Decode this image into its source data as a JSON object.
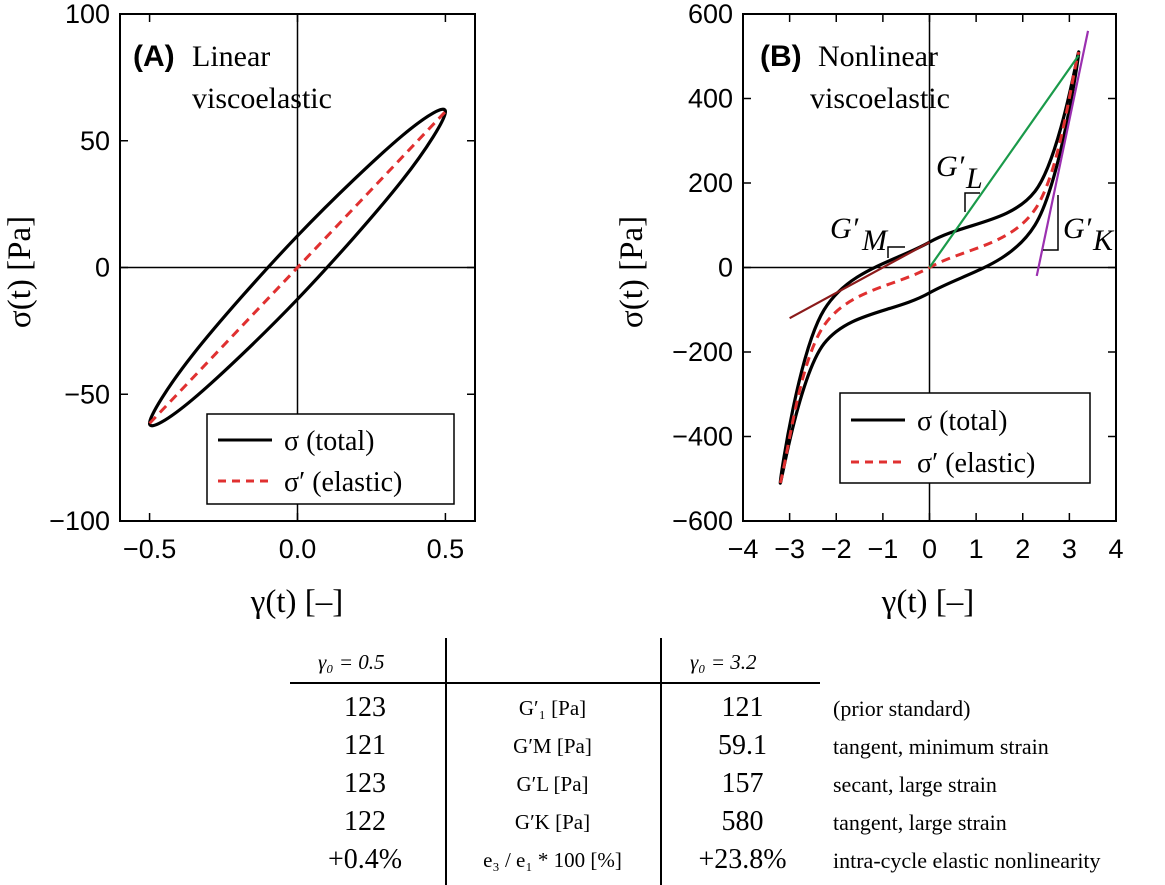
{
  "chart_data": [
    {
      "type": "line",
      "panel_letter": "(A)",
      "panel_desc_line1": "Linear",
      "panel_desc_line2": "viscoelastic",
      "xlabel": "γ(t) [–]",
      "ylabel": "σ(t) [Pa]",
      "xlim": [
        -0.6,
        0.6
      ],
      "ylim": [
        -100,
        100
      ],
      "xticks": [
        "−0.5",
        "0.0",
        "0.5"
      ],
      "xtick_values": [
        -0.5,
        0.0,
        0.5
      ],
      "yticks": [
        "100",
        "50",
        "0",
        "−50",
        "−100"
      ],
      "ytick_values": [
        100,
        50,
        0,
        -50,
        -100
      ],
      "gamma0": 0.5,
      "series": [
        {
          "name": "σ (total)",
          "style": "solid",
          "color": "#000000",
          "x": [
            0.5,
            0.354,
            0.0,
            -0.354,
            -0.5,
            -0.354,
            0.0,
            0.354,
            0.5
          ],
          "y": [
            61.5,
            52.0,
            12.5,
            -34.4,
            -61.5,
            -52.0,
            -12.5,
            34.4,
            61.5
          ]
        },
        {
          "name": "σ′ (elastic)",
          "style": "dashed",
          "color": "#e03030",
          "x": [
            -0.5,
            0.5
          ],
          "y": [
            -61.5,
            61.5
          ]
        }
      ],
      "legend": [
        "σ (total)",
        "σ′ (elastic)"
      ]
    },
    {
      "type": "line",
      "panel_letter": "(B)",
      "panel_desc_line1": "Nonlinear",
      "panel_desc_line2": "viscoelastic",
      "xlabel": "γ(t) [–]",
      "ylabel": "σ(t) [Pa]",
      "xlim": [
        -4,
        4
      ],
      "ylim": [
        -600,
        600
      ],
      "xticks": [
        "−4",
        "−3",
        "−2",
        "−1",
        "0",
        "1",
        "2",
        "3",
        "4"
      ],
      "xtick_values": [
        -4,
        -3,
        -2,
        -1,
        0,
        1,
        2,
        3,
        4
      ],
      "yticks": [
        "600",
        "400",
        "200",
        "0",
        "−200",
        "−400",
        "−600"
      ],
      "ytick_values": [
        600,
        400,
        200,
        0,
        -200,
        -400,
        -600
      ],
      "gamma0": 3.2,
      "series": [
        {
          "name": "σ (total)",
          "style": "solid",
          "color": "#000000",
          "x": [
            3.2,
            2.26,
            0.0,
            -2.26,
            -3.2,
            -2.26,
            0.0,
            2.26,
            3.2
          ],
          "y": [
            510,
            180,
            60,
            -100,
            -510,
            -180,
            -60,
            100,
            510
          ]
        },
        {
          "name": "σ′ (elastic)",
          "style": "dashed",
          "color": "#e03030",
          "x": [
            -3.2,
            -2.26,
            0.0,
            2.26,
            3.2
          ],
          "y": [
            -510,
            -137,
            0,
            137,
            510
          ]
        },
        {
          "name": "G′M tangent",
          "style": "solid",
          "color": "#8b1a1a",
          "x": [
            -3.0,
            0.0
          ],
          "y": [
            -120,
            60
          ]
        },
        {
          "name": "G′L secant",
          "style": "solid",
          "color": "#1a9a4a",
          "x": [
            0.0,
            3.2
          ],
          "y": [
            0,
            502
          ]
        },
        {
          "name": "G′K tangent",
          "style": "solid",
          "color": "#9b30b0",
          "x": [
            2.3,
            3.4
          ],
          "y": [
            -20,
            560
          ]
        }
      ],
      "annotations": {
        "gm": {
          "letter": "G′",
          "sub": "M"
        },
        "gl": {
          "letter": "G′",
          "sub": "L"
        },
        "gk": {
          "letter": "G′",
          "sub": "K"
        }
      },
      "legend": [
        "σ (total)",
        "σ′ (elastic)"
      ]
    }
  ],
  "table": {
    "header_left": "γ₀ = 0.5",
    "header_right": "γ₀ = 3.2",
    "rows": [
      {
        "left": "123",
        "mid": "G′₁ [Pa]",
        "right": "121",
        "note": "(prior standard)"
      },
      {
        "left": "121",
        "mid": "G′M [Pa]",
        "right": "59.1",
        "note": "tangent, minimum strain"
      },
      {
        "left": "123",
        "mid": "G′L [Pa]",
        "right": "157",
        "note": "secant, large strain"
      },
      {
        "left": "122",
        "mid": "G′K [Pa]",
        "right": "580",
        "note": "tangent, large strain"
      },
      {
        "left": "+0.4%",
        "mid": "e₃ / e₁ * 100 [%]",
        "right": "+23.8%",
        "note": "intra-cycle elastic nonlinearity"
      }
    ]
  }
}
